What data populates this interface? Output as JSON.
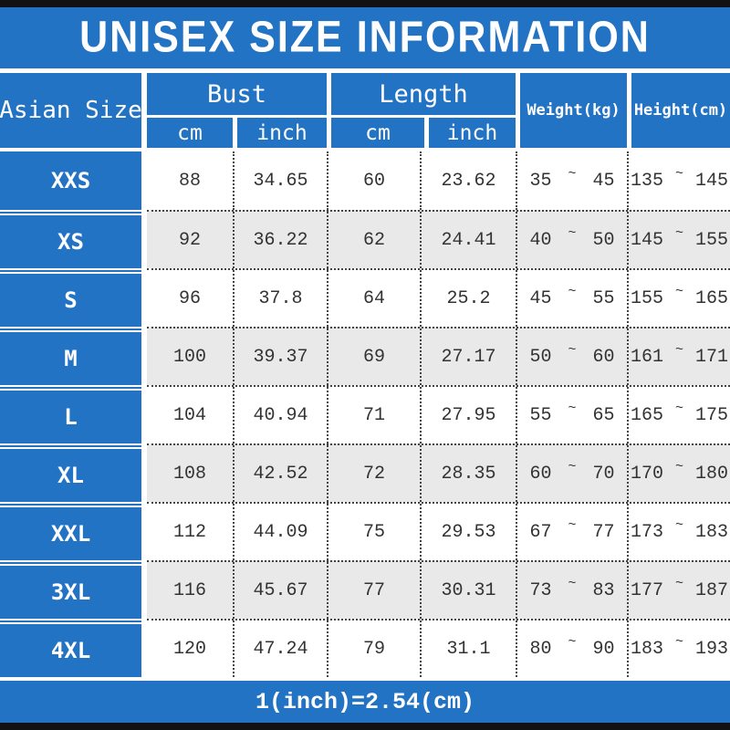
{
  "title": "UNISEX SIZE INFORMATION",
  "colors": {
    "blue": "#2373C4",
    "alt_row": "#E9E9E9",
    "text": "#333333",
    "edge_bar": "#121212"
  },
  "header": {
    "size_col": "Asian Size",
    "groups": [
      {
        "label": "Bust",
        "subs": [
          "cm",
          "inch"
        ]
      },
      {
        "label": "Length",
        "subs": [
          "cm",
          "inch"
        ]
      }
    ],
    "weight_label": "Weight(kg)",
    "height_label": "Height(cm)"
  },
  "tilde": "~",
  "rows": [
    {
      "size": "XXS",
      "bust_cm": "88",
      "bust_inch": "34.65",
      "length_cm": "60",
      "length_inch": "23.62",
      "weight_min": "35",
      "weight_max": "45",
      "height_min": "135",
      "height_max": "145"
    },
    {
      "size": "XS",
      "bust_cm": "92",
      "bust_inch": "36.22",
      "length_cm": "62",
      "length_inch": "24.41",
      "weight_min": "40",
      "weight_max": "50",
      "height_min": "145",
      "height_max": "155"
    },
    {
      "size": "S",
      "bust_cm": "96",
      "bust_inch": "37.8",
      "length_cm": "64",
      "length_inch": "25.2",
      "weight_min": "45",
      "weight_max": "55",
      "height_min": "155",
      "height_max": "165"
    },
    {
      "size": "M",
      "bust_cm": "100",
      "bust_inch": "39.37",
      "length_cm": "69",
      "length_inch": "27.17",
      "weight_min": "50",
      "weight_max": "60",
      "height_min": "161",
      "height_max": "171"
    },
    {
      "size": "L",
      "bust_cm": "104",
      "bust_inch": "40.94",
      "length_cm": "71",
      "length_inch": "27.95",
      "weight_min": "55",
      "weight_max": "65",
      "height_min": "165",
      "height_max": "175"
    },
    {
      "size": "XL",
      "bust_cm": "108",
      "bust_inch": "42.52",
      "length_cm": "72",
      "length_inch": "28.35",
      "weight_min": "60",
      "weight_max": "70",
      "height_min": "170",
      "height_max": "180"
    },
    {
      "size": "XXL",
      "bust_cm": "112",
      "bust_inch": "44.09",
      "length_cm": "75",
      "length_inch": "29.53",
      "weight_min": "67",
      "weight_max": "77",
      "height_min": "173",
      "height_max": "183"
    },
    {
      "size": "3XL",
      "bust_cm": "116",
      "bust_inch": "45.67",
      "length_cm": "77",
      "length_inch": "30.31",
      "weight_min": "73",
      "weight_max": "83",
      "height_min": "177",
      "height_max": "187"
    },
    {
      "size": "4XL",
      "bust_cm": "120",
      "bust_inch": "47.24",
      "length_cm": "79",
      "length_inch": "31.1",
      "weight_min": "80",
      "weight_max": "90",
      "height_min": "183",
      "height_max": "193"
    }
  ],
  "footer": {
    "note": "1(inch)=2.54(cm)"
  },
  "chart_data": {
    "type": "table",
    "title": "UNISEX SIZE INFORMATION",
    "columns": [
      "Asian Size",
      "Bust cm",
      "Bust inch",
      "Length cm",
      "Length inch",
      "Weight(kg)",
      "Height(cm)"
    ],
    "rows": [
      [
        "XXS",
        88,
        34.65,
        60,
        23.62,
        "35~45",
        "135~145"
      ],
      [
        "XS",
        92,
        36.22,
        62,
        24.41,
        "40~50",
        "145~155"
      ],
      [
        "S",
        96,
        37.8,
        64,
        25.2,
        "45~55",
        "155~165"
      ],
      [
        "M",
        100,
        39.37,
        69,
        27.17,
        "50~60",
        "161~171"
      ],
      [
        "L",
        104,
        40.94,
        71,
        27.95,
        "55~65",
        "165~175"
      ],
      [
        "XL",
        108,
        42.52,
        72,
        28.35,
        "60~70",
        "170~180"
      ],
      [
        "XXL",
        112,
        44.09,
        75,
        29.53,
        "67~77",
        "173~183"
      ],
      [
        "3XL",
        116,
        45.67,
        77,
        30.31,
        "73~83",
        "177~187"
      ],
      [
        "4XL",
        120,
        47.24,
        79,
        31.1,
        "80~90",
        "183~193"
      ]
    ],
    "note": "1(inch)=2.54(cm)"
  }
}
